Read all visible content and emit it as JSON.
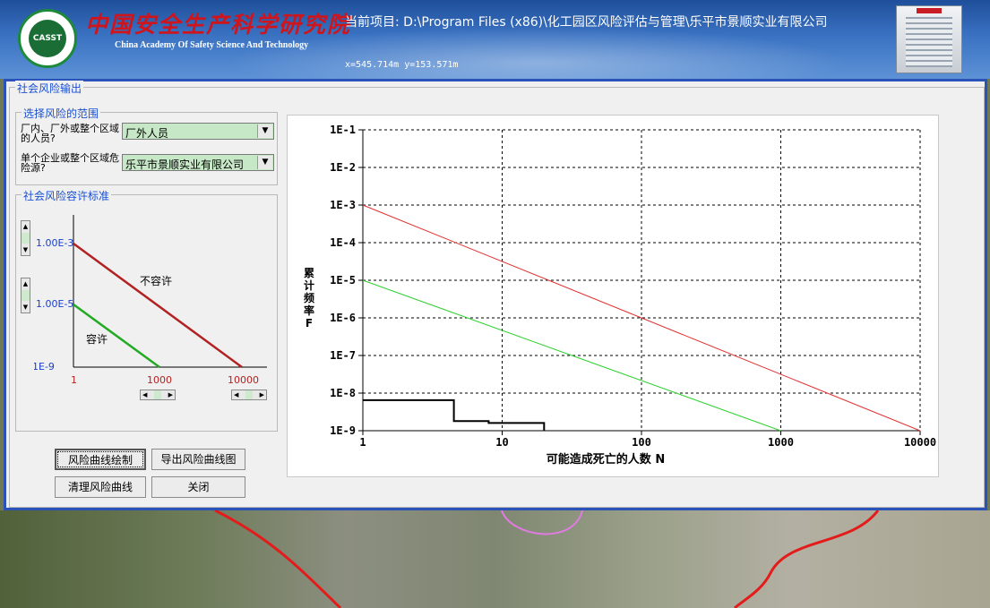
{
  "header": {
    "logo_text": "CASST",
    "org_name_cn": "中国安全生产科学研究院",
    "org_name_en": "China Academy Of Safety Science And Technology",
    "project_label": "当前项目: D:\\Program Files (x86)\\化工园区风险评估与管理\\乐平市景顺实业有限公司",
    "coordinates": "x=545.714m  y=153.571m"
  },
  "dialog": {
    "title": "社会风险输出",
    "scope_group": {
      "title": "选择风险的范围",
      "population_label": "厂内、厂外或整个区域的人员?",
      "population_value": "厂外人员",
      "source_label": "单个企业或整个区域危险源?",
      "source_value": "乐平市景顺实业有限公司"
    },
    "standard_group": {
      "title": "社会风险容许标准",
      "upper_value": "1.00E-3",
      "lower_value": "1.00E-5",
      "y_min_label": "1E-9",
      "x_start": "1",
      "x_tol_end": "1000",
      "x_intol_end": "10000",
      "intolerable_label": "不容许",
      "tolerable_label": "容许",
      "intolerable_color": "#b22222",
      "tolerable_color": "#22aa22"
    },
    "buttons": {
      "draw": "风险曲线绘制",
      "export": "导出风险曲线图",
      "clear": "清理风险曲线",
      "close": "关闭"
    }
  },
  "chart_data": {
    "type": "line",
    "xlabel": "可能造成死亡的人数 N",
    "ylabel": "累计频率F",
    "x_scale": "log",
    "y_scale": "log",
    "xlim": [
      1,
      10000
    ],
    "ylim": [
      1e-09,
      0.1
    ],
    "x_ticks": [
      "1",
      "10",
      "100",
      "1000",
      "10000"
    ],
    "y_ticks": [
      "1E-1",
      "1E-2",
      "1E-3",
      "1E-4",
      "1E-5",
      "1E-6",
      "1E-7",
      "1E-8",
      "1E-9"
    ],
    "grid": true,
    "series": [
      {
        "color": "#e03030",
        "points": [
          [
            1,
            0.001
          ],
          [
            10000,
            1e-09
          ]
        ]
      },
      {
        "color": "#30d030",
        "points": [
          [
            1,
            1e-05
          ],
          [
            1000,
            1e-09
          ]
        ]
      },
      {
        "color": "#000000",
        "step": true,
        "points": [
          [
            1,
            6.5e-09
          ],
          [
            4.5,
            6.5e-09
          ],
          [
            4.5,
            1.8e-09
          ],
          [
            8,
            1.8e-09
          ],
          [
            8,
            1.6e-09
          ],
          [
            20,
            1.6e-09
          ],
          [
            20,
            1e-09
          ]
        ]
      }
    ]
  }
}
